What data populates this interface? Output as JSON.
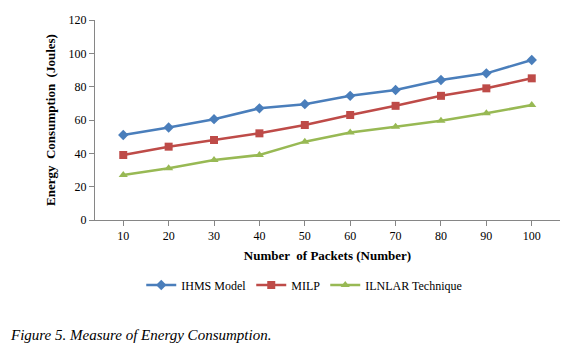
{
  "chart_data": {
    "type": "line",
    "title": "Figure 5. Measure of Energy Consumption.",
    "x_label": "Number  of Packets (Number)",
    "y_label": "Energy  Consumption  (Joules)",
    "categories": [
      "10",
      "20",
      "30",
      "40",
      "50",
      "60",
      "70",
      "80",
      "90",
      "100"
    ],
    "series": [
      {
        "name": "IHMS Model",
        "color": "#4a7ebb",
        "marker": "diamond",
        "values": [
          51,
          55.5,
          60.5,
          67,
          69.5,
          74.5,
          78,
          84,
          88,
          96
        ]
      },
      {
        "name": "MILP",
        "color": "#be4b48",
        "marker": "square",
        "values": [
          39,
          44,
          48,
          52,
          57,
          63,
          68.5,
          74.5,
          79,
          85
        ]
      },
      {
        "name": "ILNLAR Technique",
        "color": "#98b954",
        "marker": "triangle-up",
        "values": [
          27,
          31,
          36,
          39,
          47,
          52.5,
          56,
          59.5,
          64,
          69
        ]
      }
    ],
    "ylim": [
      0,
      120
    ],
    "yticks": [
      0,
      20,
      40,
      60,
      80,
      100,
      120
    ],
    "grid": false,
    "legend": "bottom"
  }
}
